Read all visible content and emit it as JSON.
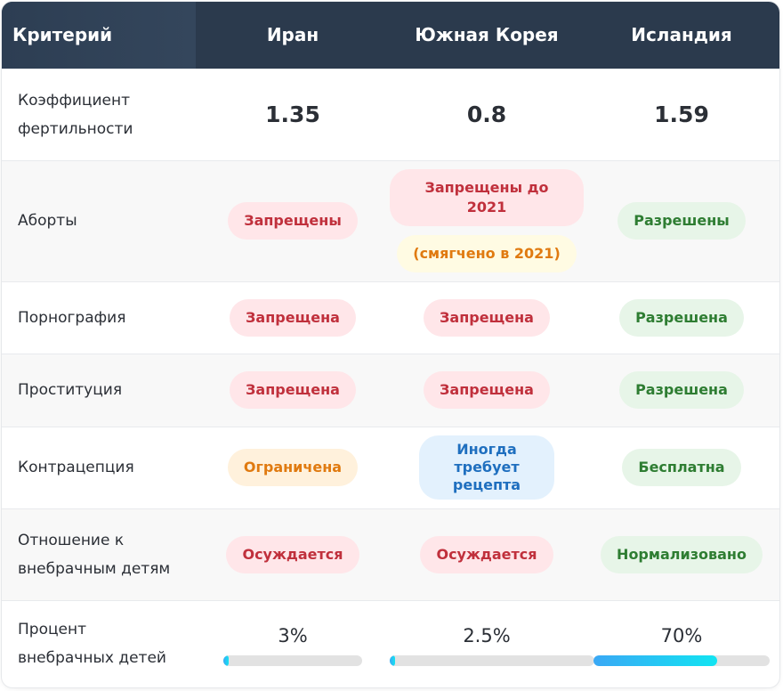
{
  "header": {
    "criterion": "Критерий",
    "countries": [
      "Иран",
      "Южная Корея",
      "Исландия"
    ]
  },
  "rows": {
    "fertility": {
      "label": "Коэффициент фертильности",
      "values": [
        "1.35",
        "0.8",
        "1.59"
      ]
    },
    "abortion": {
      "label": "Аборты",
      "iran": "Запрещены",
      "korea_main": "Запрещены до 2021",
      "korea_note": "(смягчено в 2021)",
      "iceland": "Разрешены"
    },
    "pornography": {
      "label": "Порнография",
      "values": [
        "Запрещена",
        "Запрещена",
        "Разрешена"
      ]
    },
    "prostitution": {
      "label": "Проституция",
      "values": [
        "Запрещена",
        "Запрещена",
        "Разрешена"
      ]
    },
    "contraception": {
      "label": "Контрацепция",
      "iran": "Ограничена",
      "korea": "Иногда требует рецепта",
      "iceland": "Бесплатна"
    },
    "attitude": {
      "label": "Отношение к внебрачным детям",
      "values": [
        "Осуждается",
        "Осуждается",
        "Нормализовано"
      ]
    },
    "percent": {
      "label": "Процент внебрачных детей",
      "labels": [
        "3%",
        "2.5%",
        "70%"
      ],
      "fractions": [
        0.03,
        0.025,
        0.7
      ]
    }
  },
  "colors": {
    "header_bg": "#2b3a4d",
    "pill_red_text": "#c0303c",
    "pill_green_text": "#2e7d32",
    "pill_orange_text": "#e07a10",
    "pill_blue_text": "#1f6fbf",
    "bar_fill_start": "#3aa8f5",
    "bar_fill_end": "#12e4f2"
  }
}
